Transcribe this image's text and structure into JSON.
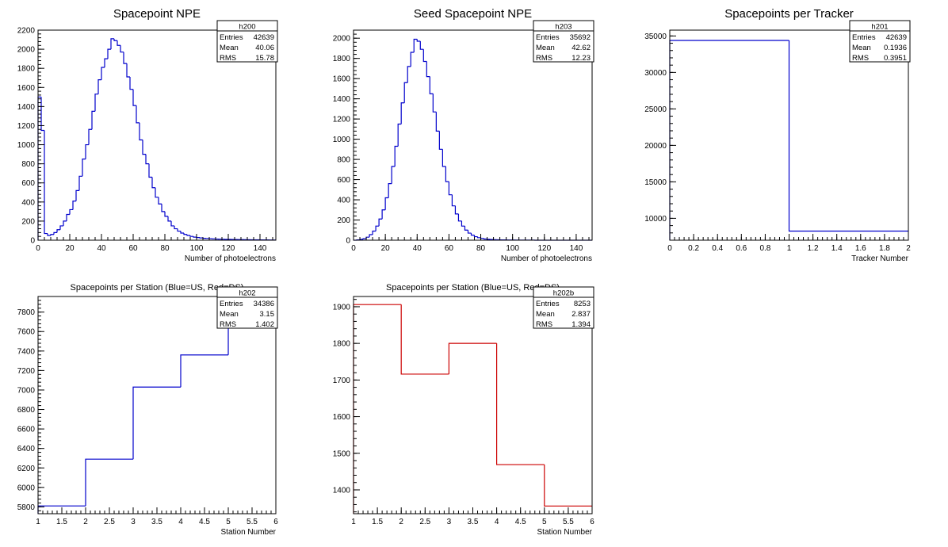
{
  "colors": {
    "blue": "#0000cc",
    "red": "#cc0000",
    "axis": "#000000"
  },
  "chart_data": [
    {
      "type": "histogram",
      "title": "Spacepoint NPE",
      "xlabel": "Number of photoelectrons",
      "xlim": [
        0,
        150
      ],
      "ylim": [
        0,
        2200
      ],
      "bin_width": 2,
      "color": "blue",
      "xticks": [
        0,
        20,
        40,
        60,
        80,
        100,
        120,
        140
      ],
      "yticks": [
        0,
        200,
        400,
        600,
        800,
        1000,
        1200,
        1400,
        1600,
        1800,
        2000,
        2200
      ],
      "values": [
        1500,
        1150,
        70,
        50,
        60,
        80,
        110,
        150,
        200,
        270,
        320,
        410,
        520,
        670,
        850,
        1000,
        1160,
        1350,
        1530,
        1680,
        1810,
        1900,
        2000,
        2110,
        2090,
        2040,
        1970,
        1850,
        1710,
        1580,
        1410,
        1230,
        1050,
        900,
        800,
        660,
        550,
        450,
        380,
        300,
        250,
        200,
        150,
        120,
        95,
        75,
        60,
        50,
        40,
        32,
        28,
        24,
        20,
        18,
        16,
        14,
        12,
        11,
        10,
        9,
        8,
        7,
        7,
        6,
        6,
        5,
        5,
        4,
        4,
        4,
        3,
        3,
        3,
        2,
        2
      ],
      "stats": {
        "name": "h200",
        "entries": "42639",
        "mean": "40.06",
        "rms": "15.78"
      }
    },
    {
      "type": "histogram",
      "title": "Seed Spacepoint NPE",
      "xlabel": "Number of photoelectrons",
      "xlim": [
        0,
        150
      ],
      "ylim": [
        0,
        2080
      ],
      "bin_width": 2,
      "color": "blue",
      "xticks": [
        0,
        20,
        40,
        60,
        80,
        100,
        120,
        140
      ],
      "yticks": [
        0,
        200,
        400,
        600,
        800,
        1000,
        1200,
        1400,
        1600,
        1800,
        2000
      ],
      "values": [
        0,
        3,
        8,
        15,
        30,
        55,
        90,
        140,
        210,
        300,
        420,
        560,
        730,
        930,
        1150,
        1360,
        1560,
        1720,
        1860,
        1990,
        1970,
        1890,
        1770,
        1620,
        1450,
        1270,
        1080,
        900,
        730,
        580,
        450,
        340,
        260,
        190,
        140,
        100,
        70,
        50,
        35,
        25,
        18,
        12,
        9,
        7,
        5,
        4,
        3,
        3,
        2,
        2,
        2,
        1,
        1,
        1,
        1,
        1,
        1,
        0,
        0,
        0,
        0,
        0,
        0,
        0,
        0,
        0,
        0,
        0,
        0,
        0,
        0,
        0,
        0,
        0,
        0
      ],
      "stats": {
        "name": "h203",
        "entries": "35692",
        "mean": "42.62",
        "rms": "12.23"
      }
    },
    {
      "type": "histogram",
      "title": "Spacepoints per Tracker",
      "xlabel": "Tracker Number",
      "xlim": [
        0,
        2
      ],
      "ylim": [
        7000,
        35800
      ],
      "bin_width": 1,
      "color": "blue",
      "xticks": [
        0,
        0.2,
        0.4,
        0.6,
        0.8,
        1,
        1.2,
        1.4,
        1.6,
        1.8,
        2
      ],
      "yticks": [
        10000,
        15000,
        20000,
        25000,
        30000,
        35000
      ],
      "values": [
        34386,
        8253
      ],
      "stats": {
        "name": "h201",
        "entries": "42639",
        "mean": "0.1936",
        "rms": "0.3951"
      }
    },
    {
      "type": "histogram",
      "title": "Spacepoints per Station (Blue=US, Red=DS)",
      "xlabel": "Station Number",
      "xlim": [
        1,
        6
      ],
      "ylim": [
        5730,
        7960
      ],
      "bin_width": 1,
      "color": "blue",
      "xticks": [
        1,
        1.5,
        2,
        2.5,
        3,
        3.5,
        4,
        4.5,
        5,
        5.5,
        6
      ],
      "yticks": [
        5800,
        6000,
        6200,
        6400,
        6600,
        6800,
        7000,
        7200,
        7400,
        7600,
        7800
      ],
      "values": [
        5810,
        6290,
        7030,
        7360,
        7860
      ],
      "stats": {
        "name": "h202",
        "entries": "34386",
        "mean": "3.15",
        "rms": "1.402"
      }
    },
    {
      "type": "histogram",
      "title": "Spacepoints per Station (Blue=US, Red=DS)",
      "xlabel": "Station Number",
      "xlim": [
        1,
        6
      ],
      "ylim": [
        1335,
        1928
      ],
      "bin_width": 1,
      "color": "red",
      "xticks": [
        1,
        1.5,
        2,
        2.5,
        3,
        3.5,
        4,
        4.5,
        5,
        5.5,
        6
      ],
      "yticks": [
        1400,
        1500,
        1600,
        1700,
        1800,
        1900
      ],
      "values": [
        1906,
        1716,
        1800,
        1469,
        1356
      ],
      "stats": {
        "name": "h202b",
        "entries": "8253",
        "mean": "2.837",
        "rms": "1.394"
      }
    }
  ]
}
